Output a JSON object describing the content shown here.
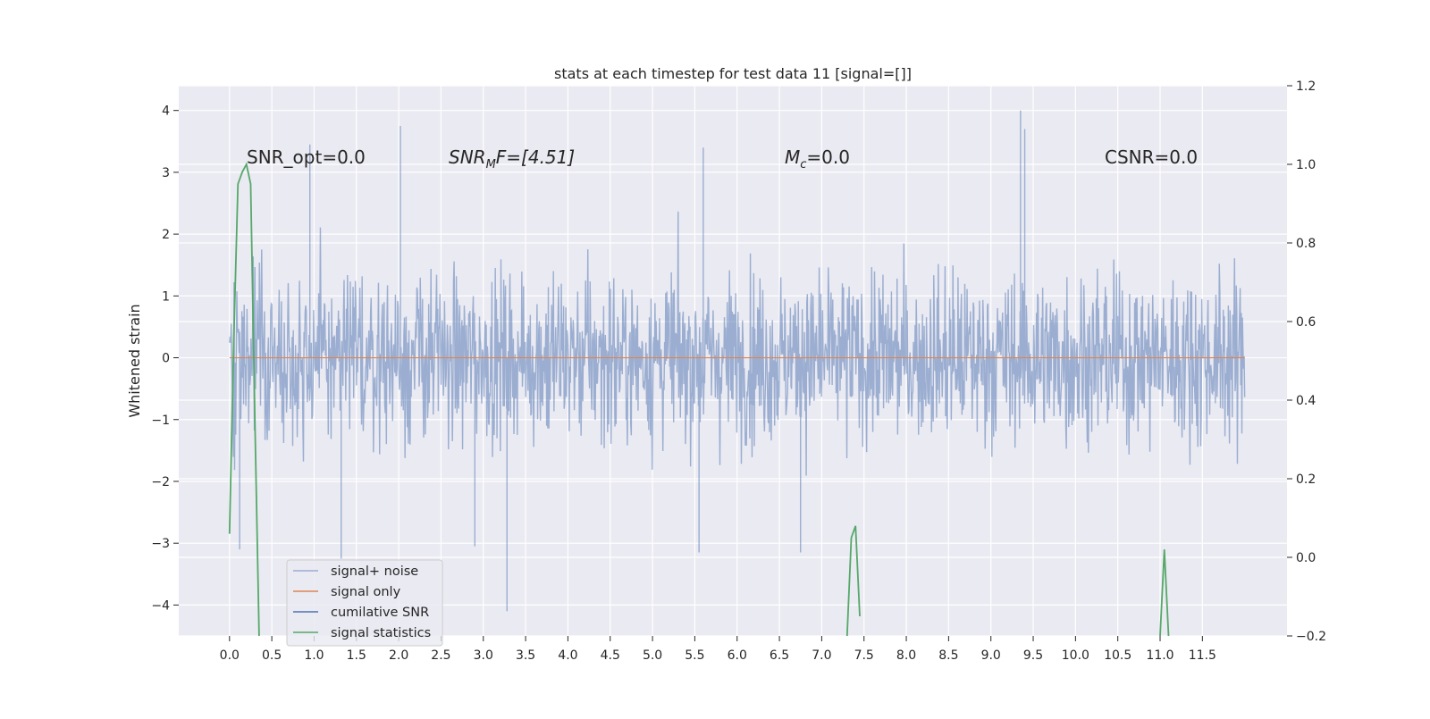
{
  "chart_data": {
    "type": "line",
    "title": "stats at each timestep for test data 11 [signal=[]]",
    "xlabel": "",
    "ylabel": "Whitened strain",
    "y2label": "",
    "xlim": [
      -0.6,
      12.5
    ],
    "ylim": [
      -4.5,
      4.4
    ],
    "y2lim": [
      -0.2,
      1.2
    ],
    "x_ticks": [
      "0.0",
      "0.5",
      "1.0",
      "1.5",
      "2.0",
      "2.5",
      "3.0",
      "3.5",
      "4.0",
      "4.5",
      "5.0",
      "5.5",
      "6.0",
      "6.5",
      "7.0",
      "7.5",
      "8.0",
      "8.5",
      "9.0",
      "9.5",
      "10.0",
      "10.5",
      "11.0",
      "11.5"
    ],
    "y_ticks": [
      "4",
      "3",
      "2",
      "1",
      "0",
      "−1",
      "−2",
      "−3",
      "−4"
    ],
    "y2_ticks": [
      "1.2",
      "1.0",
      "0.8",
      "0.6",
      "0.4",
      "0.2",
      "0.0",
      "−0.2"
    ],
    "grid": true,
    "legend_position": "lower-left",
    "annotations": {
      "snr_opt": "SNR_opt=0.0",
      "snr_mf_main": "SNR",
      "snr_mf_sub": "M",
      "snr_mf_rest": "F=[4.51]",
      "mc_main": "M",
      "mc_sub": "c",
      "mc_rest": "=0.0",
      "csnr": "CSNR=0.0"
    },
    "series": [
      {
        "name": "signal+ noise",
        "color": "#4c72b0",
        "opacity": 0.5,
        "x_range": [
          0.0,
          12.0
        ],
        "envelope_typical": [
          -2.0,
          2.0
        ],
        "peak_values": [
          [
            0.95,
            3.45
          ],
          [
            2.02,
            3.75
          ],
          [
            5.6,
            3.4
          ],
          [
            9.35,
            4.0
          ],
          [
            9.4,
            3.7
          ],
          [
            3.28,
            -4.1
          ],
          [
            1.32,
            -3.25
          ],
          [
            5.55,
            -3.15
          ],
          [
            6.75,
            -3.15
          ],
          [
            0.12,
            -3.1
          ],
          [
            2.9,
            -3.05
          ]
        ]
      },
      {
        "name": "signal only",
        "color": "#dd8452",
        "x": [
          0.0,
          12.0
        ],
        "y": [
          0.0,
          0.0
        ]
      },
      {
        "name": "cumilative SNR",
        "color": "#4c72b0",
        "x": [],
        "y": []
      },
      {
        "name": "signal statistics",
        "color": "#55a868",
        "axis": "right",
        "x": [
          0.0,
          0.05,
          0.1,
          0.15,
          0.2,
          0.25,
          0.3,
          0.35,
          7.3,
          7.35,
          7.4,
          7.45,
          11.0,
          11.05,
          11.1
        ],
        "y": [
          0.06,
          0.55,
          0.95,
          0.98,
          1.0,
          0.95,
          0.35,
          -0.2,
          -0.2,
          0.05,
          0.08,
          -0.15,
          -0.2,
          0.02,
          -0.2
        ]
      }
    ]
  }
}
